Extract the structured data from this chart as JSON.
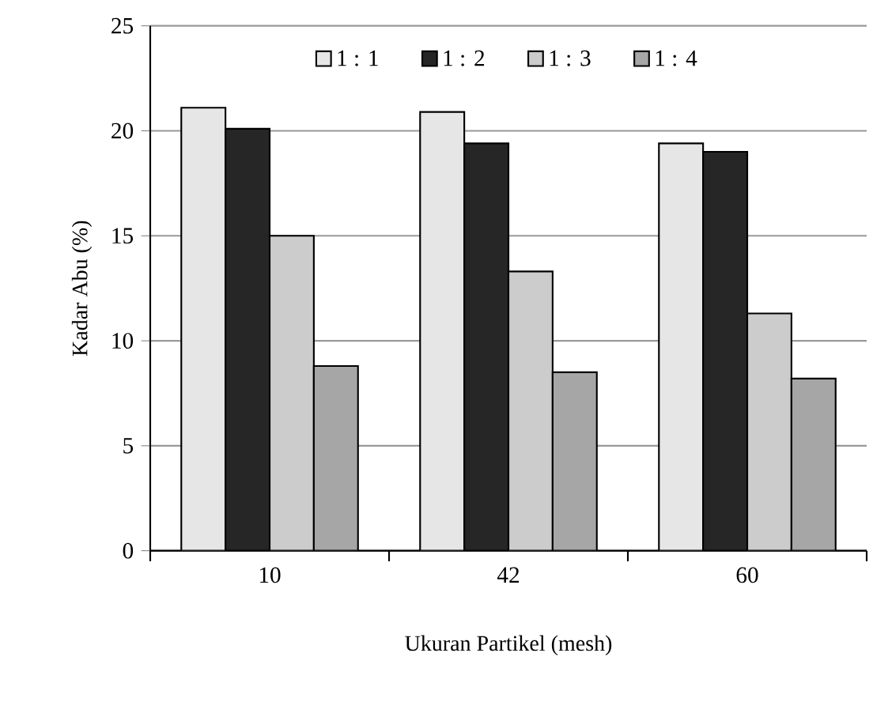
{
  "chart_data": {
    "type": "bar",
    "xlabel": "Ukuran Partikel (mesh)",
    "ylabel": "Kadar Abu (%)",
    "categories": [
      "10",
      "42",
      "60"
    ],
    "series": [
      {
        "name": "1 : 1",
        "color": "#e6e6e6",
        "values": [
          21.1,
          20.9,
          19.4
        ]
      },
      {
        "name": "1 : 2",
        "color": "#262626",
        "values": [
          20.1,
          19.4,
          19.0
        ]
      },
      {
        "name": "1 : 3",
        "color": "#cccccc",
        "values": [
          15.0,
          13.3,
          11.3
        ]
      },
      {
        "name": "1 : 4",
        "color": "#a6a6a6",
        "values": [
          8.8,
          8.5,
          8.2
        ]
      }
    ],
    "ylim": [
      0,
      25
    ],
    "yticks": [
      0,
      5,
      10,
      15,
      20,
      25
    ],
    "grid": "y",
    "legend": "top"
  }
}
